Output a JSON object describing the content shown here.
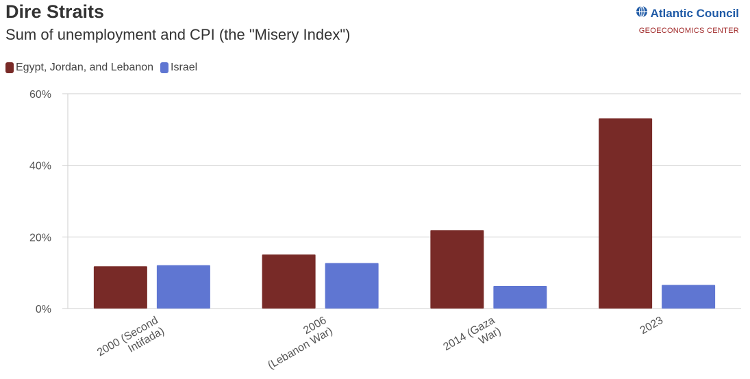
{
  "header": {
    "title": "Dire Straits",
    "subtitle": "Sum of unemployment and CPI (the \"Misery Index\")"
  },
  "brand": {
    "name": "Atlantic Council",
    "center": "GEOECONOMICS CENTER",
    "icon": "globe-icon"
  },
  "colors": {
    "series1": "#782a27",
    "series2": "#5f76d2",
    "grid": "#cfcfcf"
  },
  "chart_data": {
    "type": "bar",
    "categories": [
      [
        "2000 (Second",
        "Intifada)"
      ],
      [
        "2006",
        "(Lebanon War)"
      ],
      [
        "2014 (Gaza",
        "War)"
      ],
      [
        "2023"
      ]
    ],
    "series": [
      {
        "name": "Egypt, Jordan, and Lebanon",
        "values": [
          11.8,
          15.1,
          21.9,
          53.1
        ]
      },
      {
        "name": "Israel",
        "values": [
          12.1,
          12.7,
          6.3,
          6.6
        ]
      }
    ],
    "ylim": [
      0,
      60
    ],
    "yticks": [
      0,
      20,
      40,
      60
    ],
    "ytick_labels": [
      "0%",
      "20%",
      "40%",
      "60%"
    ],
    "grid": true,
    "legend_position": "top-left"
  }
}
